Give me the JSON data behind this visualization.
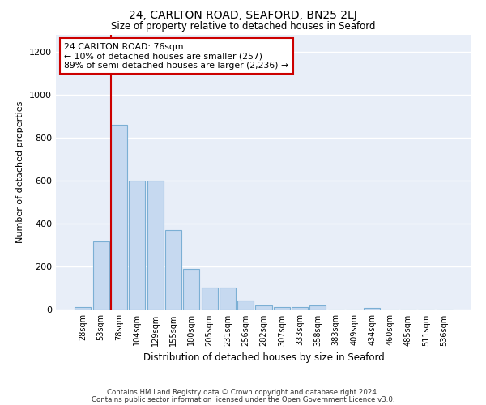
{
  "title1": "24, CARLTON ROAD, SEAFORD, BN25 2LJ",
  "title2": "Size of property relative to detached houses in Seaford",
  "xlabel": "Distribution of detached houses by size in Seaford",
  "ylabel": "Number of detached properties",
  "categories": [
    "28sqm",
    "53sqm",
    "78sqm",
    "104sqm",
    "129sqm",
    "155sqm",
    "180sqm",
    "205sqm",
    "231sqm",
    "256sqm",
    "282sqm",
    "307sqm",
    "333sqm",
    "358sqm",
    "383sqm",
    "409sqm",
    "434sqm",
    "460sqm",
    "485sqm",
    "511sqm",
    "536sqm"
  ],
  "values": [
    15,
    320,
    860,
    600,
    600,
    370,
    190,
    105,
    105,
    45,
    20,
    15,
    15,
    20,
    0,
    0,
    10,
    0,
    0,
    0,
    0
  ],
  "bar_color": "#c6d9f0",
  "bar_edge_color": "#7bafd4",
  "vline_color": "#cc0000",
  "annotation_text": "24 CARLTON ROAD: 76sqm\n← 10% of detached houses are smaller (257)\n89% of semi-detached houses are larger (2,236) →",
  "annotation_box_color": "#ffffff",
  "annotation_box_edge_color": "#cc0000",
  "ylim": [
    0,
    1280
  ],
  "yticks": [
    0,
    200,
    400,
    600,
    800,
    1000,
    1200
  ],
  "background_color": "#e8eef8",
  "grid_color": "#ffffff",
  "footer1": "Contains HM Land Registry data © Crown copyright and database right 2024.",
  "footer2": "Contains public sector information licensed under the Open Government Licence v3.0."
}
